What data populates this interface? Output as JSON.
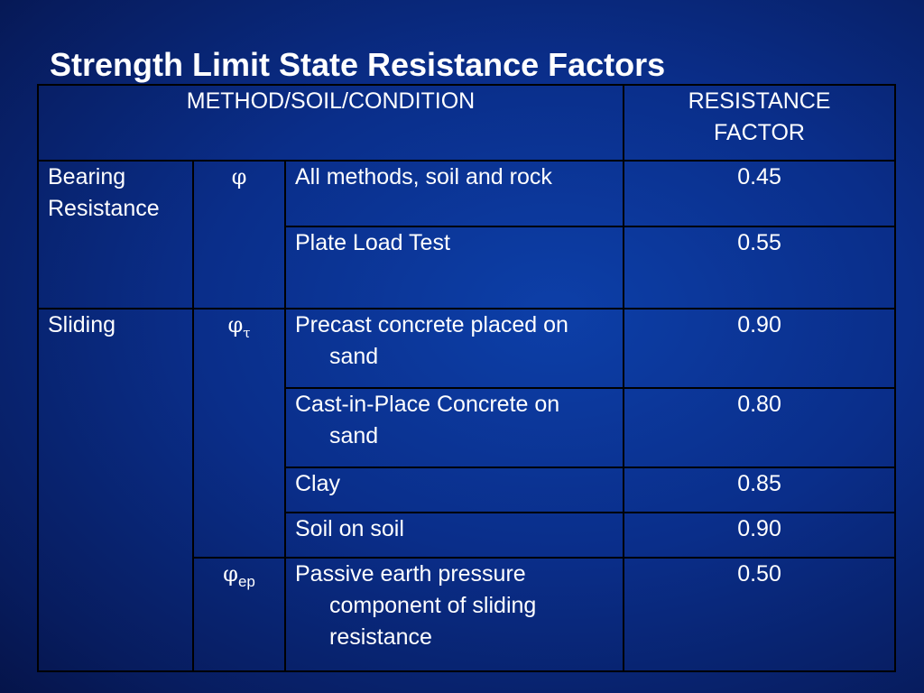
{
  "slide": {
    "title": "Strength Limit State Resistance Factors"
  },
  "table": {
    "header": {
      "method": "METHOD/SOIL/CONDITION",
      "factor_line1": "RESISTANCE",
      "factor_line2": "FACTOR"
    },
    "groups": {
      "bearing": "Bearing Resistance",
      "sliding": "Sliding"
    },
    "symbols": {
      "phi": "φ",
      "tau": "τ",
      "ep": "ep"
    },
    "rows": [
      {
        "condition": "All methods, soil and rock",
        "factor": "0.45"
      },
      {
        "condition": "Plate Load Test",
        "factor": "0.55"
      },
      {
        "condition": "Precast concrete placed on sand",
        "factor": "0.90"
      },
      {
        "condition": "Cast-in-Place Concrete on sand",
        "factor": "0.80"
      },
      {
        "condition": "Clay",
        "factor": "0.85"
      },
      {
        "condition": "Soil on soil",
        "factor": "0.90"
      },
      {
        "condition": "Passive earth pressure component of sliding resistance",
        "factor": "0.50"
      }
    ]
  }
}
